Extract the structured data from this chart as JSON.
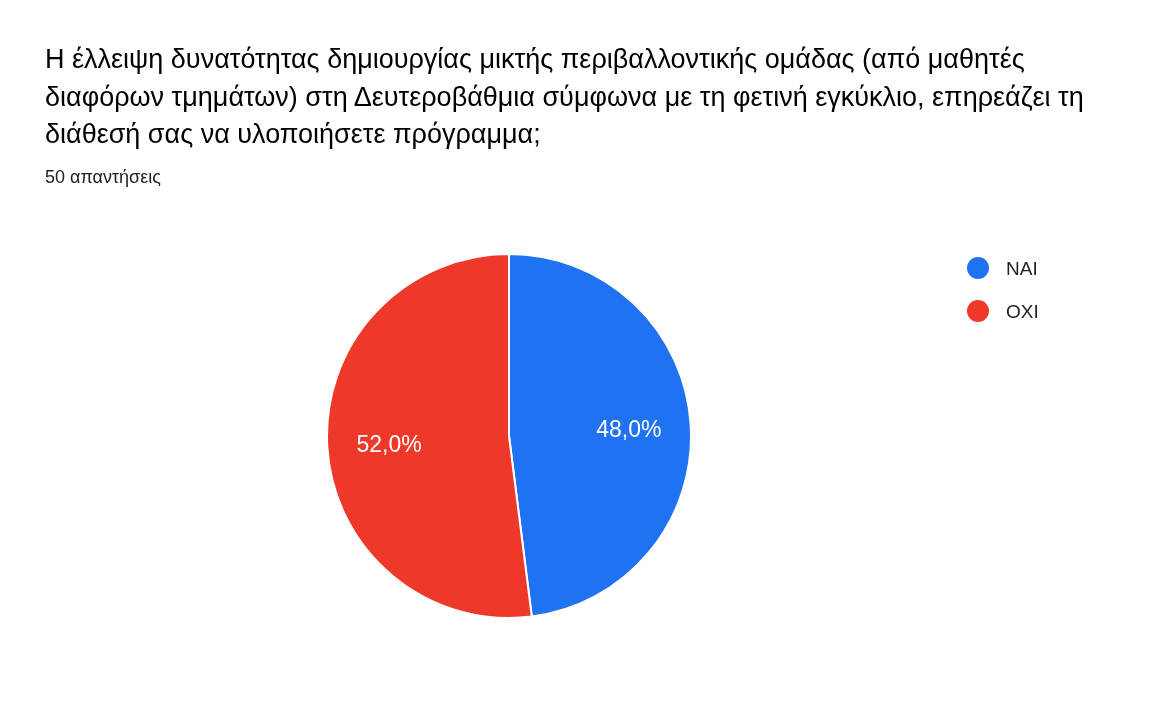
{
  "chart_data": {
    "type": "pie",
    "title": "Η έλλειψη δυνατότητας δημιουργίας μικτής περιβαλλοντικής ομάδας (από μαθητές διαφόρων τμημάτων) στη Δευτεροβάθμια σύμφωνα με τη φετινή εγκύκλιο, επηρεάζει τη διάθεσή σας να υλοποιήσετε πρόγραμμα;",
    "subtitle": "50 απαντήσεις",
    "categories": [
      "NAI",
      "OXI"
    ],
    "values": [
      48,
      52
    ],
    "colors": [
      "#1f72f1",
      "#ee3829"
    ],
    "value_labels": [
      "48,0%",
      "52,0%"
    ],
    "legend": "top right"
  }
}
